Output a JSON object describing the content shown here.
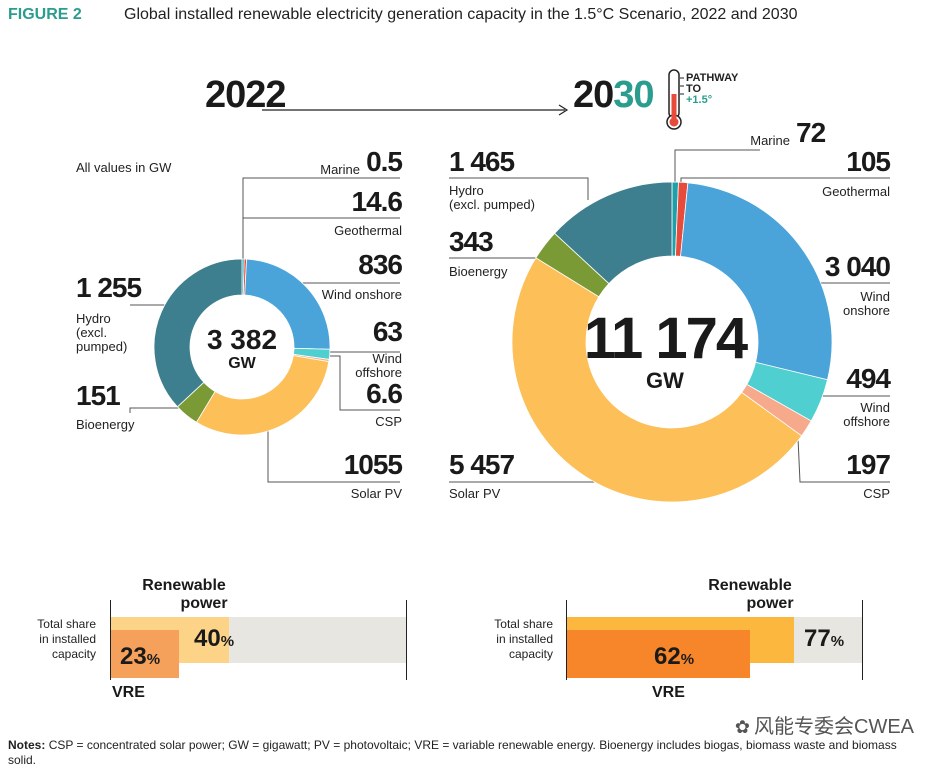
{
  "figure": {
    "label": "FIGURE 2",
    "title": "Global installed renewable electricity generation capacity in the 1.5°C Scenario, 2022 and 2030",
    "units_note": "All values in GW",
    "year_left": "2022",
    "year_right_a": "20",
    "year_right_b": "30",
    "pathway_line1": "PATHWAY",
    "pathway_line2": "TO",
    "pathway_line3": "+1.5°",
    "notes_label": "Notes:",
    "notes_text": "CSP = concentrated solar power; GW = gigawatt; PV = photovoltaic; VRE = variable renewable energy. Bioenergy includes biogas, biomass waste and biomass solid.",
    "watermark": "风能专委会CWEA"
  },
  "colors": {
    "hydro": "#3d7f8e",
    "bioenergy": "#7a9a36",
    "solar_pv": "#fdbf57",
    "wind_onshore": "#4aa3d9",
    "wind_offshore": "#4fcfd0",
    "csp": "#f7a98b",
    "marine": "#1f9fa8",
    "geothermal": "#e64b3c",
    "accent": "#2a9d8f",
    "vre_2022": "#f6a15b",
    "ren_2022": "#fdd487",
    "vre_2030": "#f7862a",
    "ren_2030": "#fbb73e",
    "bar_bg": "#e8e6e0"
  },
  "chart_data": [
    {
      "type": "pie",
      "title": "2022",
      "center_value": "3 382",
      "center_unit": "GW",
      "slices": [
        {
          "key": "marine",
          "value": 0.5,
          "value_label": "0.5",
          "label": "Marine"
        },
        {
          "key": "geothermal",
          "value": 14.6,
          "value_label": "14.6",
          "label": "Geothermal"
        },
        {
          "key": "wind_onshore",
          "value": 836,
          "value_label": "836",
          "label": "Wind onshore"
        },
        {
          "key": "wind_offshore",
          "value": 63,
          "value_label": "63",
          "label_a": "Wind",
          "label_b": "offshore"
        },
        {
          "key": "csp",
          "value": 6.6,
          "value_label": "6.6",
          "label": "CSP"
        },
        {
          "key": "solar_pv",
          "value": 1055,
          "value_label": "1055",
          "label": "Solar PV"
        },
        {
          "key": "bioenergy",
          "value": 151,
          "value_label": "151",
          "label": "Bioenergy"
        },
        {
          "key": "hydro",
          "value": 1255,
          "value_label": "1 255",
          "label_a": "Hydro",
          "label_b": "(excl.",
          "label_c": "pumped)"
        }
      ]
    },
    {
      "type": "pie",
      "title": "2030",
      "center_value": "11 174",
      "center_unit": "GW",
      "slices": [
        {
          "key": "marine",
          "value": 72,
          "value_label": "72",
          "label": "Marine"
        },
        {
          "key": "geothermal",
          "value": 105,
          "value_label": "105",
          "label": "Geothermal"
        },
        {
          "key": "wind_onshore",
          "value": 3040,
          "value_label": "3 040",
          "label_a": "Wind",
          "label_b": "onshore"
        },
        {
          "key": "wind_offshore",
          "value": 494,
          "value_label": "494",
          "label_a": "Wind",
          "label_b": "offshore"
        },
        {
          "key": "csp",
          "value": 197,
          "value_label": "197",
          "label": "CSP"
        },
        {
          "key": "solar_pv",
          "value": 5457,
          "value_label": "5 457",
          "label": "Solar PV"
        },
        {
          "key": "bioenergy",
          "value": 343,
          "value_label": "343",
          "label": "Bioenergy"
        },
        {
          "key": "hydro",
          "value": 1465,
          "value_label": "1 465",
          "label_a": "Hydro",
          "label_b": "(excl. pumped)"
        }
      ]
    },
    {
      "type": "bar",
      "title_a": "Renewable",
      "title_b": "power",
      "row_label_a": "Total share",
      "row_label_b": "in installed",
      "row_label_c": "capacity",
      "vre_label": "VRE",
      "renewable_share": 40,
      "vre_share": 23,
      "renewable_pct": "40",
      "vre_pct": "23",
      "pct_sign": "%"
    },
    {
      "type": "bar",
      "title_a": "Renewable",
      "title_b": "power",
      "row_label_a": "Total share",
      "row_label_b": "in installed",
      "row_label_c": "capacity",
      "vre_label": "VRE",
      "renewable_share": 77,
      "vre_share": 62,
      "renewable_pct": "77",
      "vre_pct": "62",
      "pct_sign": "%"
    }
  ]
}
